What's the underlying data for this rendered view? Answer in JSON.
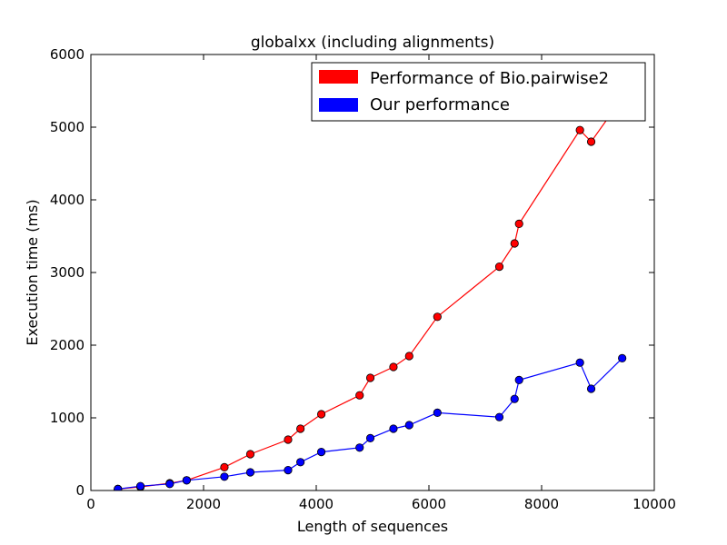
{
  "chart_data": {
    "type": "line",
    "title": "globalxx (including alignments)",
    "xlabel": "Length of sequences",
    "ylabel": "Execution time (ms)",
    "xlim": [
      0,
      10000
    ],
    "ylim": [
      0,
      6000
    ],
    "xticks": [
      "0",
      "2000",
      "4000",
      "6000",
      "8000",
      "10000"
    ],
    "yticks": [
      "0",
      "1000",
      "2000",
      "3000",
      "4000",
      "5000",
      "6000"
    ],
    "grid": false,
    "legend_position": "top-right",
    "series": [
      {
        "name": "Performance of Bio.pairwise2",
        "color": "#ff0000",
        "x": [
          480,
          880,
          1400,
          1700,
          2370,
          2830,
          3500,
          3720,
          4090,
          4770,
          4960,
          5370,
          5650,
          6150,
          7250,
          7520,
          7600,
          8680,
          8880,
          9430
        ],
        "y": [
          20,
          50,
          100,
          140,
          320,
          500,
          700,
          850,
          1050,
          1310,
          1550,
          1700,
          1850,
          2390,
          3080,
          3400,
          3670,
          4960,
          4800,
          5400
        ]
      },
      {
        "name": "Our performance",
        "color": "#0000ff",
        "x": [
          480,
          880,
          1400,
          1700,
          2370,
          2830,
          3500,
          3720,
          4090,
          4770,
          4960,
          5370,
          5650,
          6150,
          7250,
          7520,
          7600,
          8680,
          8880,
          9430
        ],
        "y": [
          20,
          60,
          90,
          140,
          190,
          250,
          280,
          390,
          530,
          590,
          720,
          850,
          900,
          1070,
          1010,
          1260,
          1520,
          1760,
          1400,
          1820
        ]
      }
    ]
  }
}
